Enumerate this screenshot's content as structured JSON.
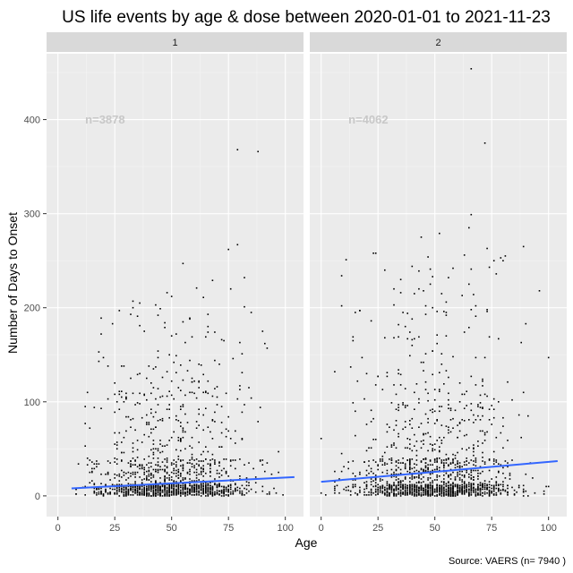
{
  "chart_data": {
    "type": "scatter",
    "title": "US life events by age & dose between 2020-01-01 to 2021-11-23",
    "xlabel": "Age",
    "ylabel": "Number of Days to Onset",
    "caption": "Source: VAERS (n= 7940 )",
    "xlim": [
      -5,
      108
    ],
    "ylim": [
      -22,
      470
    ],
    "x_ticks": [
      0,
      25,
      50,
      75,
      100
    ],
    "y_ticks": [
      0,
      100,
      200,
      300,
      400
    ],
    "grid": true,
    "panels": [
      {
        "strip": "1",
        "n_label": "n=3878",
        "trend": [
          {
            "x": 6,
            "y": 8
          },
          {
            "x": 104,
            "y": 20
          }
        ],
        "highlights": [
          {
            "x": 79,
            "y": 368
          },
          {
            "x": 88,
            "y": 366
          },
          {
            "x": 79,
            "y": 267
          },
          {
            "x": 75,
            "y": 262
          },
          {
            "x": 55,
            "y": 247
          },
          {
            "x": 82,
            "y": 232
          },
          {
            "x": 68,
            "y": 229
          },
          {
            "x": 36,
            "y": 205
          },
          {
            "x": 33,
            "y": 200
          },
          {
            "x": 61,
            "y": 221
          },
          {
            "x": 19,
            "y": 189
          },
          {
            "x": 44,
            "y": 192
          },
          {
            "x": 85,
            "y": 195
          },
          {
            "x": 50,
            "y": 170
          },
          {
            "x": 91,
            "y": 162
          },
          {
            "x": 20,
            "y": 147
          },
          {
            "x": 29,
            "y": 138
          },
          {
            "x": 57,
            "y": 133
          },
          {
            "x": 26,
            "y": 100
          },
          {
            "x": 12,
            "y": 95
          },
          {
            "x": 14,
            "y": 72
          },
          {
            "x": 13,
            "y": 40
          },
          {
            "x": 90,
            "y": 33
          },
          {
            "x": 97,
            "y": 25
          }
        ],
        "seed": 11,
        "n_points": 1400
      },
      {
        "strip": "2",
        "n_label": "n=4062",
        "trend": [
          {
            "x": 0,
            "y": 15
          },
          {
            "x": 104,
            "y": 37
          }
        ],
        "highlights": [
          {
            "x": 66,
            "y": 454
          },
          {
            "x": 72,
            "y": 375
          },
          {
            "x": 66,
            "y": 299
          },
          {
            "x": 65,
            "y": 285
          },
          {
            "x": 44,
            "y": 275
          },
          {
            "x": 52,
            "y": 279
          },
          {
            "x": 89,
            "y": 265
          },
          {
            "x": 73,
            "y": 263
          },
          {
            "x": 80,
            "y": 250
          },
          {
            "x": 77,
            "y": 236
          },
          {
            "x": 96,
            "y": 218
          },
          {
            "x": 35,
            "y": 230
          },
          {
            "x": 41,
            "y": 215
          },
          {
            "x": 15,
            "y": 195
          },
          {
            "x": 100,
            "y": 147
          },
          {
            "x": 6,
            "y": 132
          },
          {
            "x": 0,
            "y": 61
          },
          {
            "x": 0,
            "y": 3
          },
          {
            "x": 2,
            "y": 1
          },
          {
            "x": 20,
            "y": 130
          },
          {
            "x": 24,
            "y": 118
          }
        ],
        "seed": 29,
        "n_points": 1550
      }
    ]
  }
}
